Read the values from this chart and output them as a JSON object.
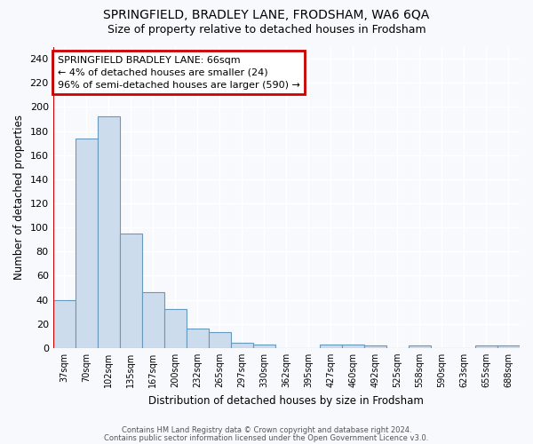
{
  "title": "SPRINGFIELD, BRADLEY LANE, FRODSHAM, WA6 6QA",
  "subtitle": "Size of property relative to detached houses in Frodsham",
  "xlabel": "Distribution of detached houses by size in Frodsham",
  "ylabel": "Number of detached properties",
  "bar_color": "#ccdcec",
  "bar_edge_color": "#6699bb",
  "redline_color": "#cc0000",
  "annotation_text": "SPRINGFIELD BRADLEY LANE: 66sqm\n← 4% of detached houses are smaller (24)\n96% of semi-detached houses are larger (590) →",
  "categories": [
    "37sqm",
    "70sqm",
    "102sqm",
    "135sqm",
    "167sqm",
    "200sqm",
    "232sqm",
    "265sqm",
    "297sqm",
    "330sqm",
    "362sqm",
    "395sqm",
    "427sqm",
    "460sqm",
    "492sqm",
    "525sqm",
    "558sqm",
    "590sqm",
    "623sqm",
    "655sqm",
    "688sqm"
  ],
  "values": [
    40,
    174,
    192,
    95,
    46,
    32,
    16,
    13,
    4,
    3,
    0,
    0,
    3,
    3,
    2,
    0,
    2,
    0,
    0,
    2,
    2
  ],
  "ylim": [
    0,
    250
  ],
  "yticks": [
    0,
    20,
    40,
    60,
    80,
    100,
    120,
    140,
    160,
    180,
    200,
    220,
    240
  ],
  "background_color": "#f7f9fc",
  "grid_color": "#ffffff",
  "footer_line1": "Contains HM Land Registry data © Crown copyright and database right 2024.",
  "footer_line2": "Contains public sector information licensed under the Open Government Licence v3.0."
}
